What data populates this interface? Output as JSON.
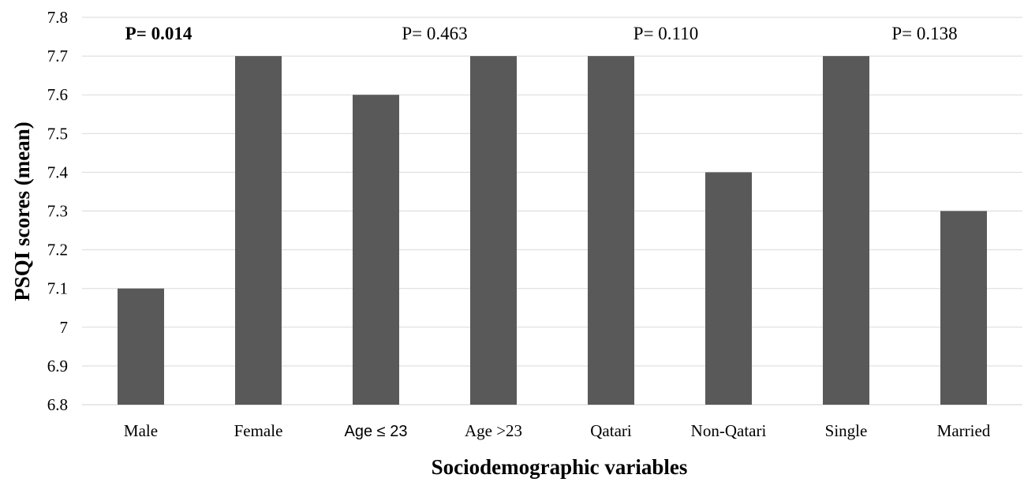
{
  "chart_data": {
    "type": "bar",
    "categories": [
      "Male",
      "Female",
      "Age ≤ 23",
      "Age >23",
      "Qatari",
      "Non-Qatari",
      "Single",
      "Married"
    ],
    "values": [
      7.1,
      7.7,
      7.6,
      7.7,
      7.7,
      7.4,
      7.7,
      7.3
    ],
    "ylabel": "PSQI scores (mean)",
    "xlabel": "Sociodemographic variables",
    "ylim": [
      6.8,
      7.8
    ],
    "yticks": [
      "6.8",
      "6.9",
      "7",
      "7.1",
      "7.2",
      "7.3",
      "7.4",
      "7.5",
      "7.6",
      "7.7",
      "7.8"
    ],
    "grid": true,
    "bar_color": "#595959",
    "annotations": [
      {
        "text": "P= 0.014",
        "bold": true,
        "group": "Male/Female"
      },
      {
        "text": "P= 0.463",
        "bold": false,
        "group": "Age"
      },
      {
        "text": "P= 0.110",
        "bold": false,
        "group": "Qatari/Non-Qatari"
      },
      {
        "text": "P= 0.138",
        "bold": false,
        "group": "Single/Married"
      }
    ]
  }
}
